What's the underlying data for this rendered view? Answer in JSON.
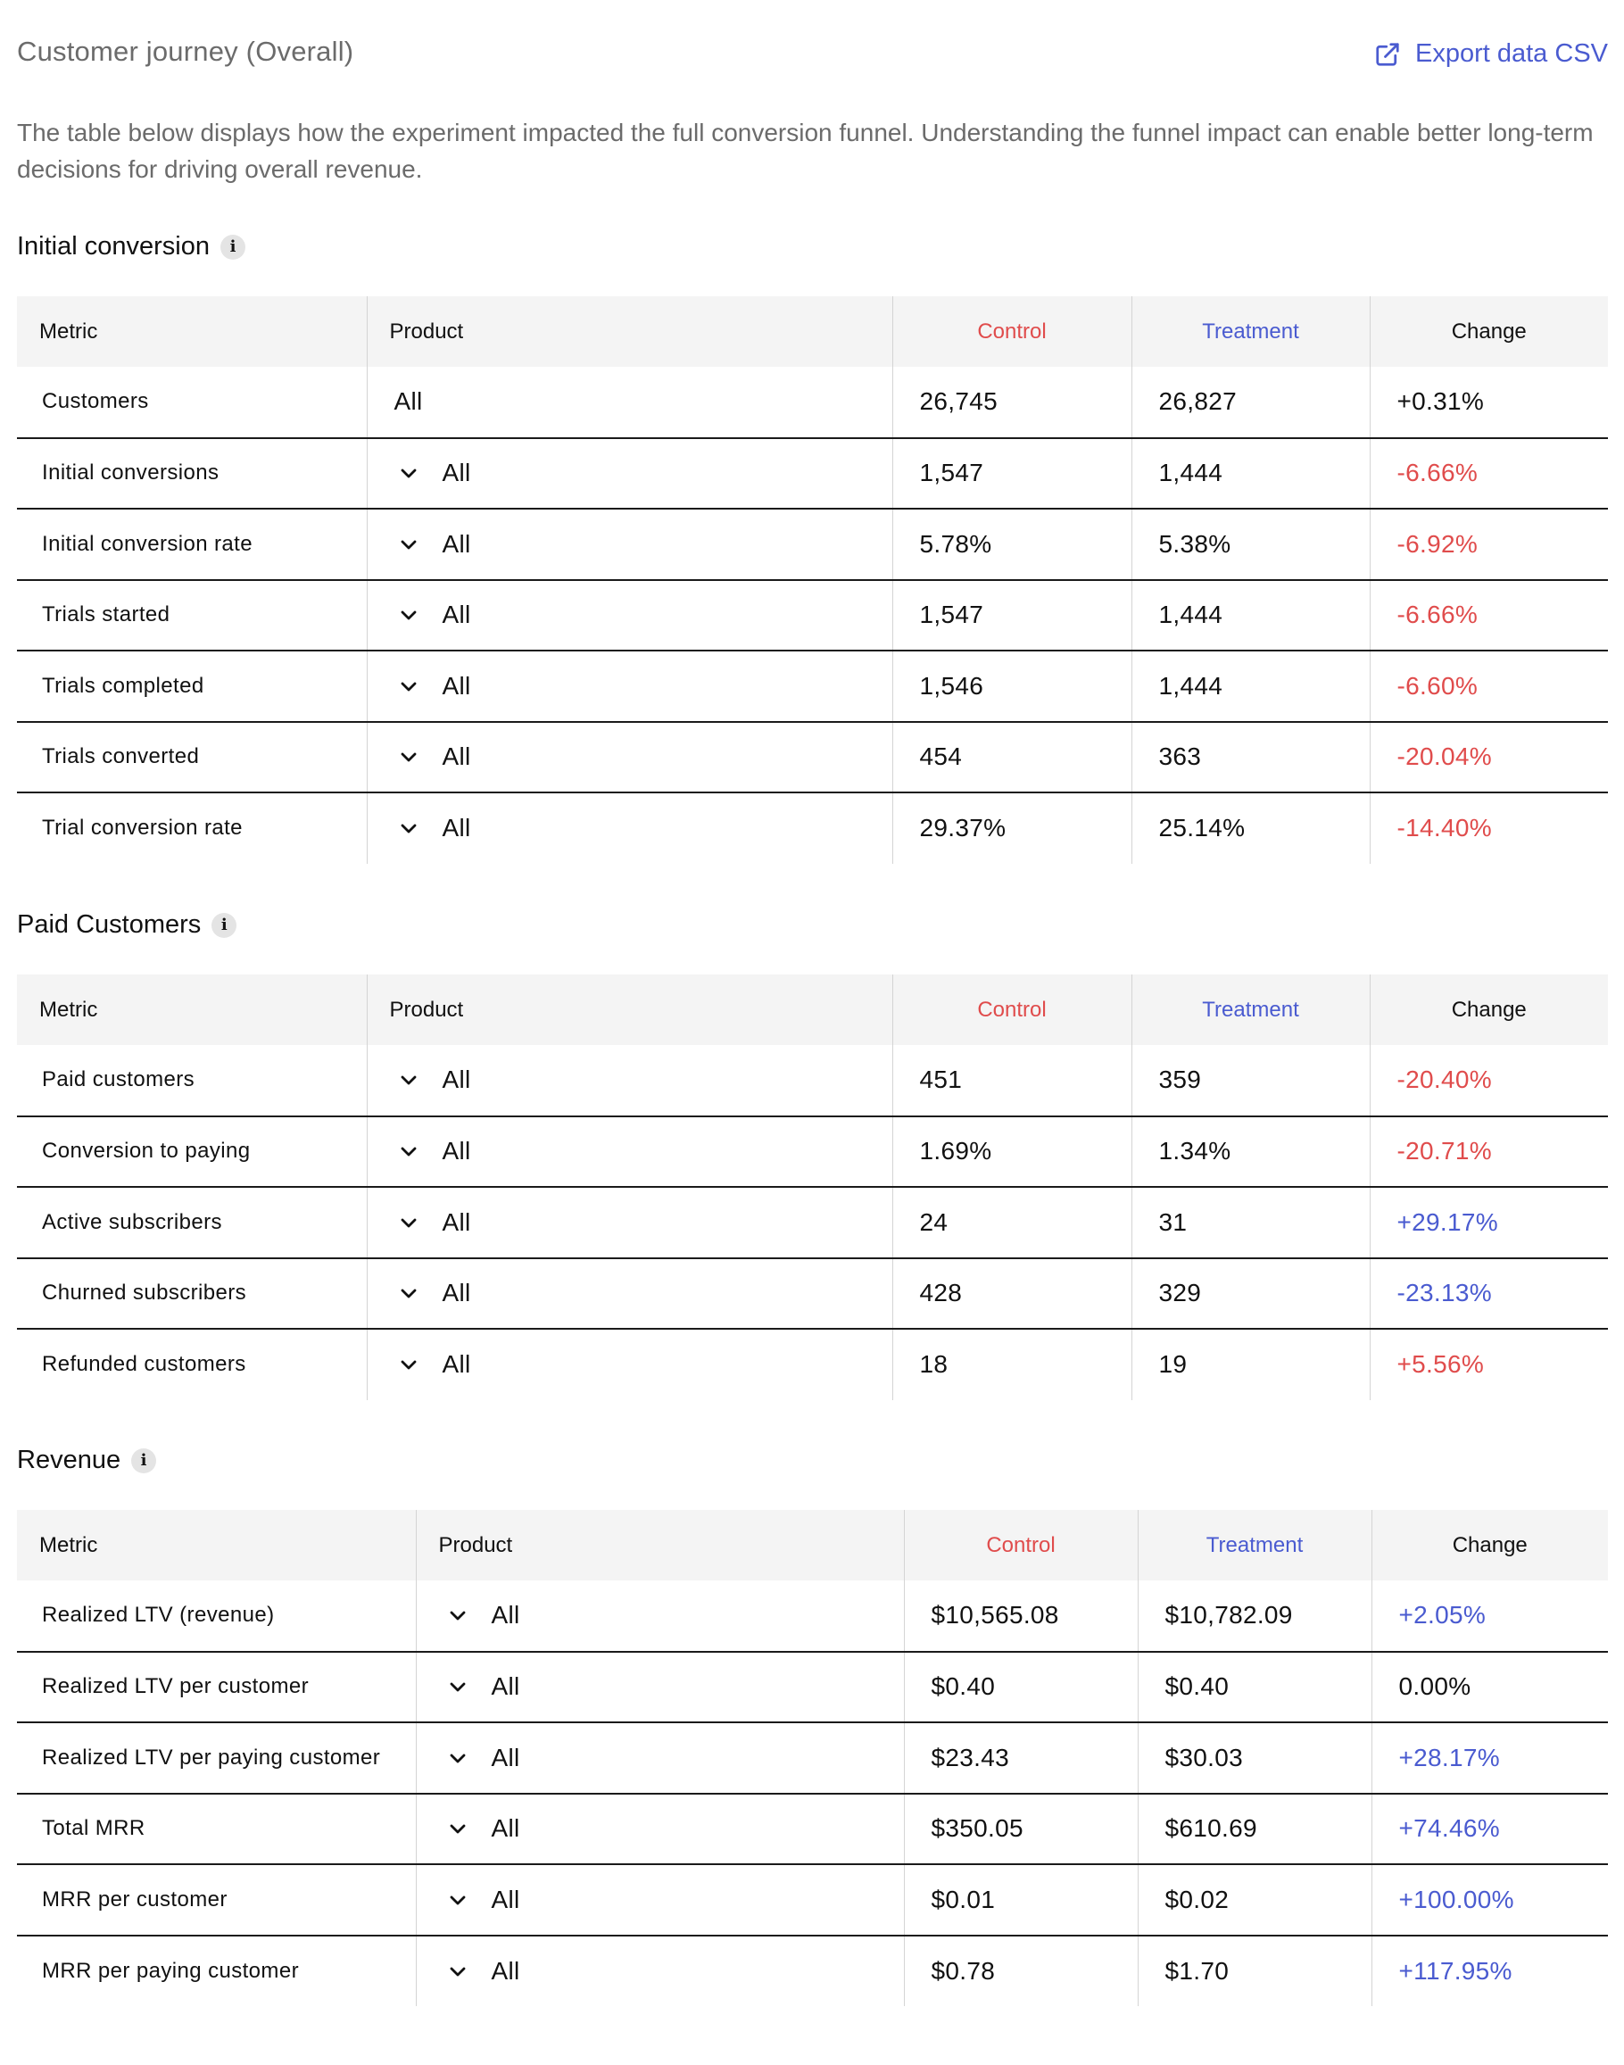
{
  "page": {
    "title": "Customer journey (Overall)",
    "export_label": "Export data CSV",
    "description": "The table below displays how the experiment impacted the full conversion funnel. Understanding the funnel impact can enable better long-term decisions for driving overall revenue."
  },
  "colors": {
    "control": "#e04c4c",
    "treatment": "#4a5bd0",
    "negative": "#e04c4c",
    "positive": "#4a5bd0",
    "header_bg": "#f4f4f4"
  },
  "icons": {
    "export": "external-link-icon",
    "info": "info-icon",
    "expand": "chevron-down-icon"
  },
  "columns": {
    "metric": "Metric",
    "product": "Product",
    "control": "Control",
    "treatment": "Treatment",
    "change": "Change"
  },
  "sections": [
    {
      "title": "Initial conversion",
      "rows": [
        {
          "metric": "Customers",
          "product": "All",
          "expandable": false,
          "control": "26,745",
          "treatment": "26,827",
          "change": "+0.31%",
          "change_tone": "neutral"
        },
        {
          "metric": "Initial conversions",
          "product": "All",
          "expandable": true,
          "control": "1,547",
          "treatment": "1,444",
          "change": "-6.66%",
          "change_tone": "neg"
        },
        {
          "metric": "Initial conversion rate",
          "product": "All",
          "expandable": true,
          "control": "5.78%",
          "treatment": "5.38%",
          "change": "-6.92%",
          "change_tone": "neg"
        },
        {
          "metric": "Trials started",
          "product": "All",
          "expandable": true,
          "control": "1,547",
          "treatment": "1,444",
          "change": "-6.66%",
          "change_tone": "neg"
        },
        {
          "metric": "Trials completed",
          "product": "All",
          "expandable": true,
          "control": "1,546",
          "treatment": "1,444",
          "change": "-6.60%",
          "change_tone": "neg"
        },
        {
          "metric": "Trials converted",
          "product": "All",
          "expandable": true,
          "control": "454",
          "treatment": "363",
          "change": "-20.04%",
          "change_tone": "neg"
        },
        {
          "metric": "Trial conversion rate",
          "product": "All",
          "expandable": true,
          "control": "29.37%",
          "treatment": "25.14%",
          "change": "-14.40%",
          "change_tone": "neg"
        }
      ]
    },
    {
      "title": "Paid Customers",
      "rows": [
        {
          "metric": "Paid customers",
          "product": "All",
          "expandable": true,
          "control": "451",
          "treatment": "359",
          "change": "-20.40%",
          "change_tone": "neg"
        },
        {
          "metric": "Conversion to paying",
          "product": "All",
          "expandable": true,
          "control": "1.69%",
          "treatment": "1.34%",
          "change": "-20.71%",
          "change_tone": "neg"
        },
        {
          "metric": "Active subscribers",
          "product": "All",
          "expandable": true,
          "control": "24",
          "treatment": "31",
          "change": "+29.17%",
          "change_tone": "pos"
        },
        {
          "metric": "Churned subscribers",
          "product": "All",
          "expandable": true,
          "control": "428",
          "treatment": "329",
          "change": "-23.13%",
          "change_tone": "pos"
        },
        {
          "metric": "Refunded customers",
          "product": "All",
          "expandable": true,
          "control": "18",
          "treatment": "19",
          "change": "+5.56%",
          "change_tone": "neg"
        }
      ]
    },
    {
      "title": "Revenue",
      "rows": [
        {
          "metric": "Realized LTV (revenue)",
          "product": "All",
          "expandable": true,
          "control": "$10,565.08",
          "treatment": "$10,782.09",
          "change": "+2.05%",
          "change_tone": "pos"
        },
        {
          "metric": "Realized LTV per customer",
          "product": "All",
          "expandable": true,
          "control": "$0.40",
          "treatment": "$0.40",
          "change": "0.00%",
          "change_tone": "neutral"
        },
        {
          "metric": "Realized LTV per paying customer",
          "product": "All",
          "expandable": true,
          "control": "$23.43",
          "treatment": "$30.03",
          "change": "+28.17%",
          "change_tone": "pos"
        },
        {
          "metric": "Total MRR",
          "product": "All",
          "expandable": true,
          "control": "$350.05",
          "treatment": "$610.69",
          "change": "+74.46%",
          "change_tone": "pos"
        },
        {
          "metric": "MRR per customer",
          "product": "All",
          "expandable": true,
          "control": "$0.01",
          "treatment": "$0.02",
          "change": "+100.00%",
          "change_tone": "pos"
        },
        {
          "metric": "MRR per paying customer",
          "product": "All",
          "expandable": true,
          "control": "$0.78",
          "treatment": "$1.70",
          "change": "+117.95%",
          "change_tone": "pos"
        }
      ]
    }
  ]
}
